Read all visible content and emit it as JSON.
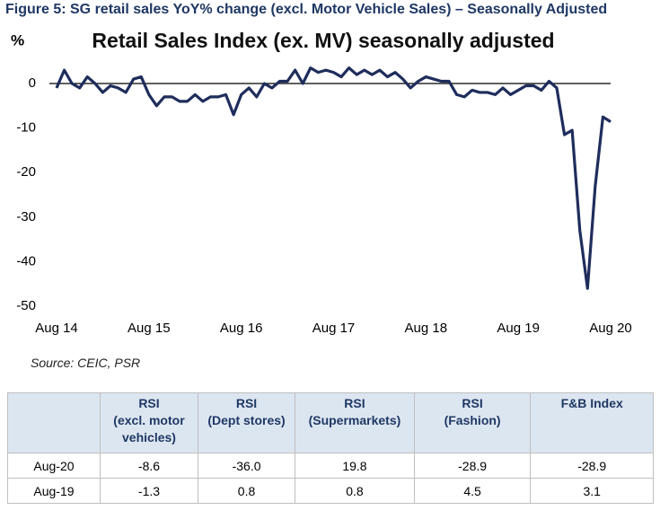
{
  "figure_caption": "Figure 5: SG retail sales YoY% change (excl. Motor Vehicle Sales) – Seasonally Adjusted",
  "chart_data": {
    "type": "line",
    "title": "Retail Sales Index (ex. MV) seasonally adjusted",
    "y_label": "%",
    "categories": [
      "Aug 14",
      null,
      null,
      null,
      null,
      null,
      null,
      null,
      null,
      null,
      null,
      null,
      "Aug 15",
      null,
      null,
      null,
      null,
      null,
      null,
      null,
      null,
      null,
      null,
      null,
      "Aug 16",
      null,
      null,
      null,
      null,
      null,
      null,
      null,
      null,
      null,
      null,
      null,
      "Aug 17",
      null,
      null,
      null,
      null,
      null,
      null,
      null,
      null,
      null,
      null,
      null,
      "Aug 18",
      null,
      null,
      null,
      null,
      null,
      null,
      null,
      null,
      null,
      null,
      null,
      "Aug 19",
      null,
      null,
      null,
      null,
      null,
      null,
      null,
      null,
      null,
      null,
      null,
      "Aug 20"
    ],
    "values": [
      -1,
      3,
      0,
      -1,
      1.5,
      0,
      -2,
      -0.5,
      -1,
      -2,
      1,
      1.5,
      -2.5,
      -5,
      -3,
      -3,
      -4,
      -4,
      -2.5,
      -4,
      -3,
      -3,
      -2.5,
      -7,
      -2.5,
      -1,
      -3,
      0,
      -1,
      0.5,
      0.5,
      3,
      0,
      3.5,
      2.5,
      3,
      2.5,
      1.5,
      3.5,
      2,
      3,
      2,
      3,
      1.5,
      2.5,
      1,
      -1,
      0.5,
      1.5,
      1,
      0.5,
      0.5,
      -2.5,
      -3,
      -1.5,
      -2,
      -2,
      -2.5,
      -1,
      -2.5,
      -1.5,
      -0.5,
      -0.5,
      -1.5,
      0.5,
      -1,
      -11.5,
      -10.5,
      -33,
      -46,
      -23,
      -7.5,
      -8.6
    ],
    "color": "#1f2d5c",
    "ylim": [
      -50,
      5
    ],
    "yticks": [
      0,
      -10,
      -20,
      -30,
      -40,
      -50
    ],
    "grid": false
  },
  "source": "Source: CEIC, PSR",
  "table": {
    "header": [
      [],
      [
        "RSI",
        "(excl. motor",
        "vehicles)"
      ],
      [
        "RSI",
        "(Dept stores)"
      ],
      [
        "RSI",
        "(Supermarkets)"
      ],
      [
        "RSI",
        "(Fashion)"
      ],
      [
        "F&B Index"
      ]
    ],
    "rows": [
      [
        "Aug-20",
        "-8.6",
        "-36.0",
        "19.8",
        "-28.9",
        "-28.9"
      ],
      [
        "Aug-19",
        "-1.3",
        "0.8",
        "0.8",
        "4.5",
        "3.1"
      ]
    ]
  }
}
